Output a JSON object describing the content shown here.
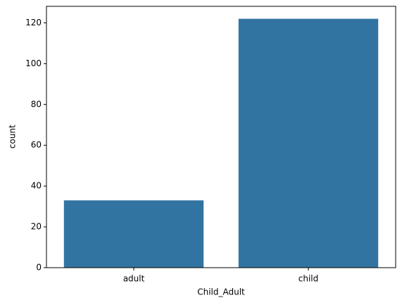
{
  "chart_data": {
    "type": "bar",
    "categories": [
      "adult",
      "child"
    ],
    "values": [
      33,
      122
    ],
    "color": "#3274a1",
    "xlabel": "Child_Adult",
    "ylabel": "count",
    "ylim": [
      0,
      128.1
    ],
    "yticks": [
      0,
      20,
      40,
      60,
      80,
      100,
      120
    ],
    "grid": false
  }
}
